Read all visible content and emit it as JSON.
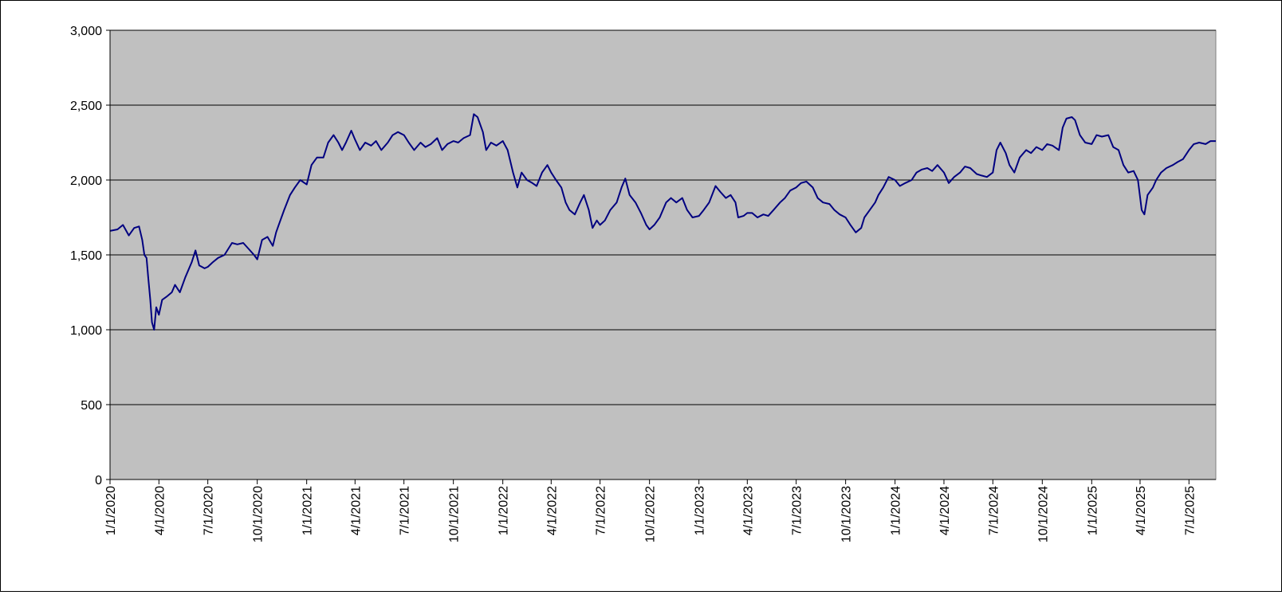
{
  "chart_data": {
    "type": "line",
    "title": "",
    "xlabel": "",
    "ylabel": "",
    "ylim": [
      0,
      3000
    ],
    "xlim": [
      "2020-01-01",
      "2025-08-20"
    ],
    "y_ticks": [
      0,
      500,
      1000,
      1500,
      2000,
      2500,
      3000
    ],
    "y_tick_labels": [
      "0",
      "500",
      "1,000",
      "1,500",
      "2,000",
      "2,500",
      "3,000"
    ],
    "x_ticks": [
      "2020-01-01",
      "2020-04-01",
      "2020-07-01",
      "2020-10-01",
      "2021-01-01",
      "2021-04-01",
      "2021-07-01",
      "2021-10-01",
      "2022-01-01",
      "2022-04-01",
      "2022-07-01",
      "2022-10-01",
      "2023-01-01",
      "2023-04-01",
      "2023-07-01",
      "2023-10-01",
      "2024-01-01",
      "2024-04-01",
      "2024-07-01",
      "2024-10-01",
      "2025-01-01",
      "2025-04-01",
      "2025-07-01"
    ],
    "x_tick_labels": [
      "1/1/2020",
      "4/1/2020",
      "7/1/2020",
      "10/1/2020",
      "1/1/2021",
      "4/1/2021",
      "7/1/2021",
      "10/1/2021",
      "1/1/2022",
      "4/1/2022",
      "7/1/2022",
      "10/1/2022",
      "1/1/2023",
      "4/1/2023",
      "7/1/2023",
      "10/1/2023",
      "1/1/2024",
      "4/1/2024",
      "7/1/2024",
      "10/1/2024",
      "1/1/2025",
      "4/1/2025",
      "7/1/2025"
    ],
    "grid": "horizontal",
    "plot_background": "#c0c0c0",
    "line_color": "#000080",
    "series": [
      {
        "name": "",
        "points": [
          [
            "2020-01-01",
            1660
          ],
          [
            "2020-01-15",
            1670
          ],
          [
            "2020-01-25",
            1700
          ],
          [
            "2020-02-05",
            1630
          ],
          [
            "2020-02-15",
            1680
          ],
          [
            "2020-02-24",
            1690
          ],
          [
            "2020-03-01",
            1600
          ],
          [
            "2020-03-05",
            1500
          ],
          [
            "2020-03-09",
            1480
          ],
          [
            "2020-03-12",
            1350
          ],
          [
            "2020-03-16",
            1200
          ],
          [
            "2020-03-19",
            1050
          ],
          [
            "2020-03-23",
            1000
          ],
          [
            "2020-03-27",
            1150
          ],
          [
            "2020-04-01",
            1100
          ],
          [
            "2020-04-07",
            1200
          ],
          [
            "2020-04-15",
            1220
          ],
          [
            "2020-04-25",
            1250
          ],
          [
            "2020-05-01",
            1300
          ],
          [
            "2020-05-10",
            1250
          ],
          [
            "2020-05-20",
            1350
          ],
          [
            "2020-06-01",
            1450
          ],
          [
            "2020-06-08",
            1530
          ],
          [
            "2020-06-15",
            1430
          ],
          [
            "2020-06-25",
            1410
          ],
          [
            "2020-07-01",
            1420
          ],
          [
            "2020-07-10",
            1450
          ],
          [
            "2020-07-20",
            1480
          ],
          [
            "2020-08-01",
            1500
          ],
          [
            "2020-08-15",
            1580
          ],
          [
            "2020-08-25",
            1570
          ],
          [
            "2020-09-05",
            1580
          ],
          [
            "2020-09-15",
            1540
          ],
          [
            "2020-09-25",
            1500
          ],
          [
            "2020-10-01",
            1470
          ],
          [
            "2020-10-10",
            1600
          ],
          [
            "2020-10-20",
            1620
          ],
          [
            "2020-10-30",
            1560
          ],
          [
            "2020-11-05",
            1650
          ],
          [
            "2020-11-10",
            1700
          ],
          [
            "2020-11-20",
            1800
          ],
          [
            "2020-12-01",
            1900
          ],
          [
            "2020-12-10",
            1950
          ],
          [
            "2020-12-20",
            2000
          ],
          [
            "2021-01-01",
            1970
          ],
          [
            "2021-01-10",
            2100
          ],
          [
            "2021-01-20",
            2150
          ],
          [
            "2021-02-01",
            2150
          ],
          [
            "2021-02-10",
            2250
          ],
          [
            "2021-02-20",
            2300
          ],
          [
            "2021-03-01",
            2250
          ],
          [
            "2021-03-08",
            2200
          ],
          [
            "2021-03-15",
            2250
          ],
          [
            "2021-03-25",
            2330
          ],
          [
            "2021-04-01",
            2270
          ],
          [
            "2021-04-10",
            2200
          ],
          [
            "2021-04-20",
            2250
          ],
          [
            "2021-05-01",
            2230
          ],
          [
            "2021-05-10",
            2260
          ],
          [
            "2021-05-20",
            2200
          ],
          [
            "2021-06-01",
            2250
          ],
          [
            "2021-06-10",
            2300
          ],
          [
            "2021-06-20",
            2320
          ],
          [
            "2021-07-01",
            2300
          ],
          [
            "2021-07-10",
            2250
          ],
          [
            "2021-07-20",
            2200
          ],
          [
            "2021-08-01",
            2250
          ],
          [
            "2021-08-10",
            2220
          ],
          [
            "2021-08-20",
            2240
          ],
          [
            "2021-09-01",
            2280
          ],
          [
            "2021-09-10",
            2200
          ],
          [
            "2021-09-20",
            2240
          ],
          [
            "2021-10-01",
            2260
          ],
          [
            "2021-10-10",
            2250
          ],
          [
            "2021-10-20",
            2280
          ],
          [
            "2021-11-01",
            2300
          ],
          [
            "2021-11-08",
            2440
          ],
          [
            "2021-11-15",
            2420
          ],
          [
            "2021-11-25",
            2320
          ],
          [
            "2021-12-01",
            2200
          ],
          [
            "2021-12-10",
            2250
          ],
          [
            "2021-12-20",
            2230
          ],
          [
            "2022-01-01",
            2260
          ],
          [
            "2022-01-10",
            2200
          ],
          [
            "2022-01-20",
            2050
          ],
          [
            "2022-01-28",
            1950
          ],
          [
            "2022-02-05",
            2050
          ],
          [
            "2022-02-15",
            2000
          ],
          [
            "2022-02-25",
            1980
          ],
          [
            "2022-03-05",
            1960
          ],
          [
            "2022-03-15",
            2050
          ],
          [
            "2022-03-25",
            2100
          ],
          [
            "2022-04-01",
            2050
          ],
          [
            "2022-04-10",
            2000
          ],
          [
            "2022-04-20",
            1950
          ],
          [
            "2022-04-28",
            1850
          ],
          [
            "2022-05-05",
            1800
          ],
          [
            "2022-05-15",
            1770
          ],
          [
            "2022-05-25",
            1850
          ],
          [
            "2022-06-01",
            1900
          ],
          [
            "2022-06-10",
            1800
          ],
          [
            "2022-06-17",
            1680
          ],
          [
            "2022-06-25",
            1730
          ],
          [
            "2022-07-01",
            1700
          ],
          [
            "2022-07-10",
            1730
          ],
          [
            "2022-07-20",
            1800
          ],
          [
            "2022-08-01",
            1850
          ],
          [
            "2022-08-10",
            1950
          ],
          [
            "2022-08-17",
            2010
          ],
          [
            "2022-08-25",
            1900
          ],
          [
            "2022-09-05",
            1850
          ],
          [
            "2022-09-15",
            1780
          ],
          [
            "2022-09-25",
            1700
          ],
          [
            "2022-10-01",
            1670
          ],
          [
            "2022-10-10",
            1700
          ],
          [
            "2022-10-20",
            1750
          ],
          [
            "2022-11-01",
            1850
          ],
          [
            "2022-11-10",
            1880
          ],
          [
            "2022-11-20",
            1850
          ],
          [
            "2022-12-01",
            1880
          ],
          [
            "2022-12-10",
            1800
          ],
          [
            "2022-12-20",
            1750
          ],
          [
            "2023-01-01",
            1760
          ],
          [
            "2023-01-10",
            1800
          ],
          [
            "2023-01-20",
            1850
          ],
          [
            "2023-02-01",
            1960
          ],
          [
            "2023-02-10",
            1920
          ],
          [
            "2023-02-20",
            1880
          ],
          [
            "2023-03-01",
            1900
          ],
          [
            "2023-03-10",
            1850
          ],
          [
            "2023-03-15",
            1750
          ],
          [
            "2023-03-25",
            1760
          ],
          [
            "2023-04-01",
            1780
          ],
          [
            "2023-04-10",
            1780
          ],
          [
            "2023-04-20",
            1750
          ],
          [
            "2023-05-01",
            1770
          ],
          [
            "2023-05-10",
            1760
          ],
          [
            "2023-05-20",
            1800
          ],
          [
            "2023-06-01",
            1850
          ],
          [
            "2023-06-10",
            1880
          ],
          [
            "2023-06-20",
            1930
          ],
          [
            "2023-07-01",
            1950
          ],
          [
            "2023-07-10",
            1980
          ],
          [
            "2023-07-20",
            1990
          ],
          [
            "2023-08-01",
            1950
          ],
          [
            "2023-08-10",
            1880
          ],
          [
            "2023-08-20",
            1850
          ],
          [
            "2023-09-01",
            1840
          ],
          [
            "2023-09-10",
            1800
          ],
          [
            "2023-09-20",
            1770
          ],
          [
            "2023-10-01",
            1750
          ],
          [
            "2023-10-10",
            1700
          ],
          [
            "2023-10-20",
            1650
          ],
          [
            "2023-10-30",
            1680
          ],
          [
            "2023-11-05",
            1750
          ],
          [
            "2023-11-15",
            1800
          ],
          [
            "2023-11-25",
            1850
          ],
          [
            "2023-12-01",
            1900
          ],
          [
            "2023-12-10",
            1950
          ],
          [
            "2023-12-20",
            2020
          ],
          [
            "2024-01-01",
            2000
          ],
          [
            "2024-01-10",
            1960
          ],
          [
            "2024-01-20",
            1980
          ],
          [
            "2024-02-01",
            2000
          ],
          [
            "2024-02-10",
            2050
          ],
          [
            "2024-02-20",
            2070
          ],
          [
            "2024-03-01",
            2080
          ],
          [
            "2024-03-10",
            2060
          ],
          [
            "2024-03-20",
            2100
          ],
          [
            "2024-04-01",
            2050
          ],
          [
            "2024-04-10",
            1980
          ],
          [
            "2024-04-20",
            2020
          ],
          [
            "2024-05-01",
            2050
          ],
          [
            "2024-05-10",
            2090
          ],
          [
            "2024-05-20",
            2080
          ],
          [
            "2024-06-01",
            2040
          ],
          [
            "2024-06-10",
            2030
          ],
          [
            "2024-06-20",
            2020
          ],
          [
            "2024-07-01",
            2050
          ],
          [
            "2024-07-08",
            2200
          ],
          [
            "2024-07-15",
            2250
          ],
          [
            "2024-07-25",
            2180
          ],
          [
            "2024-08-01",
            2100
          ],
          [
            "2024-08-10",
            2050
          ],
          [
            "2024-08-20",
            2150
          ],
          [
            "2024-09-01",
            2200
          ],
          [
            "2024-09-10",
            2180
          ],
          [
            "2024-09-20",
            2220
          ],
          [
            "2024-10-01",
            2200
          ],
          [
            "2024-10-10",
            2240
          ],
          [
            "2024-10-20",
            2230
          ],
          [
            "2024-11-01",
            2200
          ],
          [
            "2024-11-08",
            2350
          ],
          [
            "2024-11-15",
            2410
          ],
          [
            "2024-11-25",
            2420
          ],
          [
            "2024-12-01",
            2400
          ],
          [
            "2024-12-10",
            2300
          ],
          [
            "2024-12-20",
            2250
          ],
          [
            "2025-01-01",
            2240
          ],
          [
            "2025-01-10",
            2300
          ],
          [
            "2025-01-20",
            2290
          ],
          [
            "2025-02-01",
            2300
          ],
          [
            "2025-02-10",
            2220
          ],
          [
            "2025-02-20",
            2200
          ],
          [
            "2025-03-01",
            2100
          ],
          [
            "2025-03-10",
            2050
          ],
          [
            "2025-03-20",
            2060
          ],
          [
            "2025-03-28",
            2000
          ],
          [
            "2025-04-04",
            1800
          ],
          [
            "2025-04-09",
            1770
          ],
          [
            "2025-04-15",
            1900
          ],
          [
            "2025-04-25",
            1950
          ],
          [
            "2025-05-01",
            2000
          ],
          [
            "2025-05-10",
            2050
          ],
          [
            "2025-05-20",
            2080
          ],
          [
            "2025-06-01",
            2100
          ],
          [
            "2025-06-10",
            2120
          ],
          [
            "2025-06-20",
            2140
          ],
          [
            "2025-07-01",
            2200
          ],
          [
            "2025-07-10",
            2240
          ],
          [
            "2025-07-20",
            2250
          ],
          [
            "2025-08-01",
            2240
          ],
          [
            "2025-08-10",
            2260
          ],
          [
            "2025-08-20",
            2260
          ]
        ]
      }
    ]
  }
}
